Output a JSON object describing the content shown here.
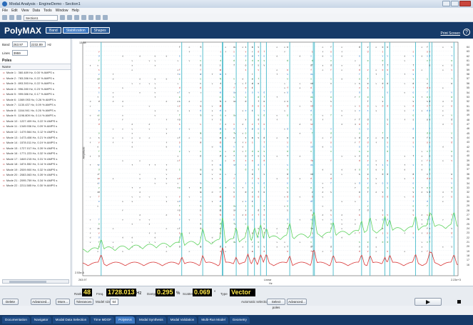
{
  "window": {
    "title": "Modal Analysis - EngineDemo - Section1"
  },
  "menu": [
    "File",
    "Edit",
    "View",
    "Data",
    "Tools",
    "Window",
    "Help"
  ],
  "toolbar": {
    "section": "Section1"
  },
  "header": {
    "logo": "PolyMAX",
    "tabs": [
      {
        "label": "Band"
      },
      {
        "label": "Stabilization"
      },
      {
        "label": "Shapes"
      }
    ],
    "print": "Print Screen",
    "help": "?"
  },
  "left": {
    "band_label": "Band",
    "band_from": "263.97",
    "band_to": "2232.89",
    "band_unit": "Hz",
    "lines_label": "Lines",
    "lines": "3959",
    "poles_label": "Poles",
    "name_col": "Name",
    "modes": [
      "Mode 1 : 360.489 Hz, 0.00 % AMPS s",
      "Mode 2 : 783.286 Hz, 0.22 % AMPS s",
      "Mode 3 : 893.393 Hz, 0.22 % AMPS s",
      "Mode 4 : 996.280 Hz, 0.23 % AMPS s",
      "Mode 5 : 999.086 Hz, 0.17 % AMPS s",
      "Mode 6 : 1069.093 Hz, 0.26 % AMPS s",
      "Mode 7 : 1130.437 Hz, 0.09 % AMPS s",
      "Mode 8 : 1164.941 Hz, 0.26 % AMPS s",
      "Mode 9 : 1196.809 Hz, 0.14 % AMPS s",
      "Mode 10 : 1227.409 Hz, 0.22 % AMPS s",
      "Mode 11 : 1349.936 Hz, 0.09 % AMPS s",
      "Mode 12 : 1479.564 Hz, 0.12 % AMPS s",
      "Mode 13 : 1473.408 Hz, 0.21 % AMPS s",
      "Mode 14 : 1578.011 Hz, 0.19 % AMPS s",
      "Mode 15 : 1727.017 Hz, 0.39 % AMPS s",
      "Mode 16 : 1771.223 Hz, 0.32 % AMPS s",
      "Mode 17 : 1849.215 Hz, 0.31 % AMPS s",
      "Mode 18 : 1874.552 Hz, 0.14 % AMPS s",
      "Mode 19 : 2009.900 Hz, 0.32 % AMPS s",
      "Mode 20 : 2083.063 Hz, 0.39 % AMPS s",
      "Mode 21 : 2095.759 Hz, 0.34 % AMPS s",
      "Mode 22 : 2211.585 Hz, 0.30 % AMPS s"
    ]
  },
  "chart": {
    "ytop": "13.38",
    "ybottom": "2.53e-6",
    "ylabel": "Amplitude",
    "xleft": "263.97",
    "xright": "2.23e+3",
    "xscale": "Linear",
    "xunit": "Hz",
    "orders": [
      "64",
      "63",
      "62",
      "61",
      "60",
      "59",
      "58",
      "57",
      "56",
      "55",
      "54",
      "53",
      "52",
      "51",
      "50",
      "49",
      "48",
      "47",
      "46",
      "45",
      "44",
      "43",
      "42",
      "41",
      "40",
      "39",
      "38",
      "37",
      "36",
      "35",
      "34",
      "33",
      "32",
      "31",
      "30",
      "29",
      "28",
      "27",
      "26",
      "25",
      "24",
      "23",
      "22",
      "21",
      "20",
      "19",
      "18",
      "17",
      "16"
    ]
  },
  "status": {
    "rank_label": "Rank",
    "rank": "48",
    "freq_label": "Freq.",
    "freq": "1728.013",
    "freq_unit": "Hz",
    "damp_label": "Damp.",
    "damp": "0.295",
    "damp_unit": "%",
    "scatter_label": "Scatter",
    "scatter": "0.069",
    "scatter_unit": "°",
    "type_label": "Type",
    "type": "Vector"
  },
  "buttons": {
    "delete": "Delete",
    "advanced": "Advanced...",
    "more": "More...",
    "tolerances": "Tolerances",
    "modelsize_label": "Model size",
    "modelsize": "64",
    "autosel": "Automatic selection:",
    "select_poles": "Select poles",
    "advanced2": "Advanced..."
  },
  "bottom_tabs": [
    "Documentation",
    "Navigator",
    "Modal Data Selection",
    "Time MDOF",
    "PolyMAX",
    "Modal Synthesis",
    "Modal Validation",
    "Multi-Run Model",
    "Geometry"
  ],
  "colors": {
    "accent": "#163a68",
    "stable_lines": "#46b9c9",
    "red_curve": "#d83535",
    "green_curve": "#5fd35f"
  }
}
